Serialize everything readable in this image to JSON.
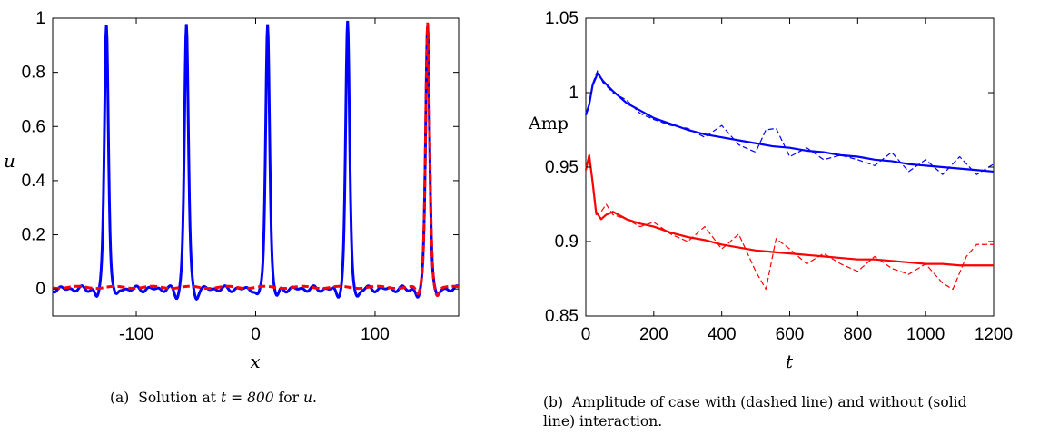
{
  "chart_data": [
    {
      "type": "line",
      "caption": {
        "label": "(a)",
        "text": "Solution at",
        "math": "t = 800",
        "suffix": "for",
        "var": "u",
        "end": "."
      },
      "xlabel": "x",
      "ylabel": "u",
      "xlim": [
        -170,
        170
      ],
      "ylim": [
        -0.1,
        1.0
      ],
      "xticks": [
        -100,
        0,
        100
      ],
      "xtick_labels": [
        "-100",
        "0",
        "100"
      ],
      "yticks": [
        0,
        0.2,
        0.4,
        0.6,
        0.8,
        1
      ],
      "ytick_labels": [
        "0",
        "0.2",
        "0.4",
        "0.6",
        "0.8",
        "1"
      ],
      "series": [
        {
          "color": "#0000ff",
          "style": "solid",
          "peaks": [
            -125,
            -58,
            10,
            77,
            144
          ],
          "peak_height": 0.98
        },
        {
          "color": "#ff0000",
          "style": "dashed",
          "peaks": [
            144
          ],
          "peak_height": 0.98
        }
      ],
      "grid": false
    },
    {
      "type": "line",
      "caption": {
        "label": "(b)",
        "line1": "Amplitude of case with (dashed line) and without (solid",
        "line2": "line) interaction."
      },
      "xlabel": "t",
      "ylabel": "Amp",
      "xlim": [
        0,
        1200
      ],
      "ylim": [
        0.85,
        1.05
      ],
      "xticks": [
        0,
        200,
        400,
        600,
        800,
        1000,
        1200
      ],
      "xtick_labels": [
        "0",
        "200",
        "400",
        "600",
        "800",
        "1000",
        "1200"
      ],
      "yticks": [
        0.85,
        0.9,
        0.95,
        1,
        1.05
      ],
      "ytick_labels": [
        "0.85",
        "0.9",
        "0.95",
        "1",
        "1.05"
      ],
      "series": [
        {
          "color": "#0000ff",
          "style": "solid",
          "x": [
            0,
            10,
            20,
            35,
            50,
            80,
            120,
            160,
            200,
            250,
            300,
            350,
            400,
            450,
            500,
            550,
            600,
            650,
            700,
            750,
            800,
            850,
            900,
            950,
            1000,
            1050,
            1100,
            1150,
            1200
          ],
          "y": [
            0.985,
            0.992,
            1.005,
            1.013,
            1.008,
            1.001,
            0.993,
            0.988,
            0.983,
            0.979,
            0.975,
            0.972,
            0.97,
            0.968,
            0.966,
            0.964,
            0.963,
            0.961,
            0.96,
            0.958,
            0.957,
            0.955,
            0.954,
            0.952,
            0.951,
            0.95,
            0.949,
            0.948,
            0.947
          ]
        },
        {
          "color": "#0000ff",
          "style": "dashed",
          "x": [
            0,
            10,
            20,
            35,
            50,
            80,
            120,
            160,
            200,
            250,
            300,
            350,
            400,
            450,
            500,
            530,
            560,
            600,
            650,
            700,
            750,
            800,
            850,
            900,
            950,
            1000,
            1050,
            1100,
            1150,
            1200
          ],
          "y": [
            0.985,
            0.993,
            1.006,
            1.015,
            1.007,
            1.0,
            0.995,
            0.986,
            0.982,
            0.978,
            0.976,
            0.97,
            0.978,
            0.965,
            0.96,
            0.975,
            0.976,
            0.957,
            0.963,
            0.955,
            0.958,
            0.955,
            0.951,
            0.96,
            0.947,
            0.955,
            0.945,
            0.957,
            0.945,
            0.952
          ]
        },
        {
          "color": "#ff0000",
          "style": "solid",
          "x": [
            0,
            10,
            20,
            30,
            45,
            60,
            80,
            120,
            160,
            200,
            250,
            300,
            350,
            400,
            450,
            500,
            550,
            600,
            650,
            700,
            750,
            800,
            850,
            900,
            950,
            1000,
            1050,
            1100,
            1150,
            1200
          ],
          "y": [
            0.948,
            0.958,
            0.94,
            0.92,
            0.915,
            0.918,
            0.92,
            0.915,
            0.912,
            0.91,
            0.906,
            0.903,
            0.901,
            0.898,
            0.896,
            0.894,
            0.893,
            0.892,
            0.891,
            0.89,
            0.889,
            0.888,
            0.888,
            0.887,
            0.886,
            0.885,
            0.885,
            0.884,
            0.884,
            0.884
          ]
        },
        {
          "color": "#ff0000",
          "style": "dashed",
          "x": [
            0,
            10,
            20,
            30,
            45,
            60,
            80,
            120,
            160,
            200,
            250,
            300,
            350,
            400,
            450,
            500,
            530,
            560,
            600,
            650,
            700,
            750,
            800,
            850,
            900,
            950,
            1000,
            1050,
            1080,
            1120,
            1150,
            1200
          ],
          "y": [
            0.948,
            0.958,
            0.938,
            0.918,
            0.92,
            0.925,
            0.918,
            0.915,
            0.91,
            0.913,
            0.905,
            0.9,
            0.91,
            0.895,
            0.905,
            0.88,
            0.868,
            0.902,
            0.895,
            0.885,
            0.892,
            0.885,
            0.88,
            0.89,
            0.882,
            0.878,
            0.885,
            0.872,
            0.868,
            0.89,
            0.898,
            0.898
          ]
        }
      ],
      "grid": false
    }
  ]
}
